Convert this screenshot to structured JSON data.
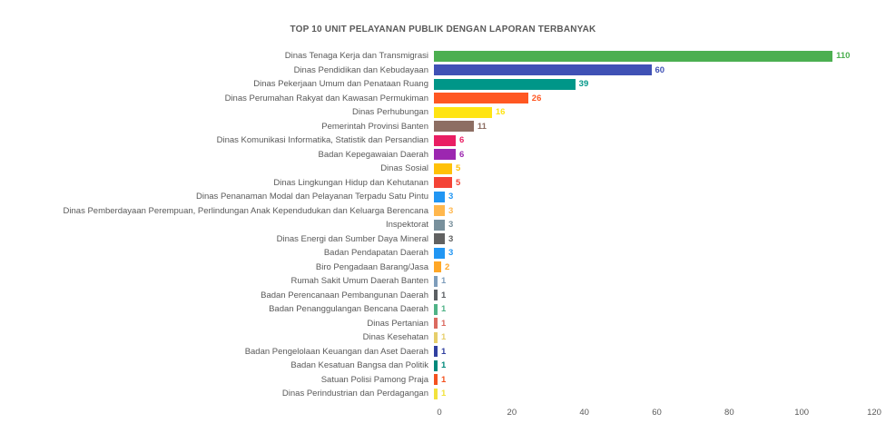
{
  "chart_data": {
    "type": "bar",
    "orientation": "horizontal",
    "title": "TOP 10 UNIT PELAYANAN PUBLIK DENGAN LAPORAN TERBANYAK",
    "xlabel": "",
    "ylabel": "",
    "xlim": [
      0,
      120
    ],
    "x_ticks": [
      0,
      20,
      40,
      60,
      80,
      100,
      120
    ],
    "grid": false,
    "legend": false,
    "value_labels": true,
    "categories": [
      "Dinas Tenaga Kerja dan Transmigrasi",
      "Dinas Pendidikan dan Kebudayaan",
      "Dinas Pekerjaan Umum dan Penataan Ruang",
      "Dinas Perumahan Rakyat dan Kawasan Permukiman",
      "Dinas Perhubungan",
      "Pemerintah Provinsi Banten",
      "Dinas Komunikasi Informatika, Statistik dan Persandian",
      "Badan Kepegawaian Daerah",
      "Dinas Sosial",
      "Dinas Lingkungan Hidup dan Kehutanan",
      "Dinas Penanaman Modal dan Pelayanan Terpadu Satu Pintu",
      "Dinas Pemberdayaan Perempuan, Perlindungan Anak Kependudukan dan Keluarga Berencana",
      "Inspektorat",
      "Dinas Energi dan Sumber Daya Mineral",
      "Badan Pendapatan Daerah",
      "Biro Pengadaan Barang/Jasa",
      "Rumah Sakit Umum Daerah Banten",
      "Badan Perencanaan Pembangunan Daerah",
      "Badan Penanggulangan Bencana Daerah",
      "Dinas Pertanian",
      "Dinas Kesehatan",
      "Badan Pengelolaan Keuangan dan Aset Daerah",
      "Badan Kesatuan Bangsa dan Politik",
      "Satuan Polisi Pamong Praja",
      "Dinas Perindustrian dan Perdagangan"
    ],
    "values": [
      110,
      60,
      39,
      26,
      16,
      11,
      6,
      6,
      5,
      5,
      3,
      3,
      3,
      3,
      3,
      2,
      1,
      1,
      1,
      1,
      1,
      1,
      1,
      1,
      1
    ],
    "colors": [
      "#4CAF50",
      "#3F51B5",
      "#009688",
      "#FF5722",
      "#FFE412",
      "#8D6E63",
      "#E91E63",
      "#9C27B0",
      "#FFC107",
      "#F44336",
      "#2196F3",
      "#FFB74D",
      "#78909C",
      "#616161",
      "#2196F3",
      "#FFA726",
      "#7E9DBB",
      "#5B5F63",
      "#4FB286",
      "#DB6A5F",
      "#E6CE6A",
      "#303F9F",
      "#00897B",
      "#F4511E",
      "#F2E23C"
    ],
    "text_color": "#595959",
    "background_color": "#FFFFFF"
  }
}
